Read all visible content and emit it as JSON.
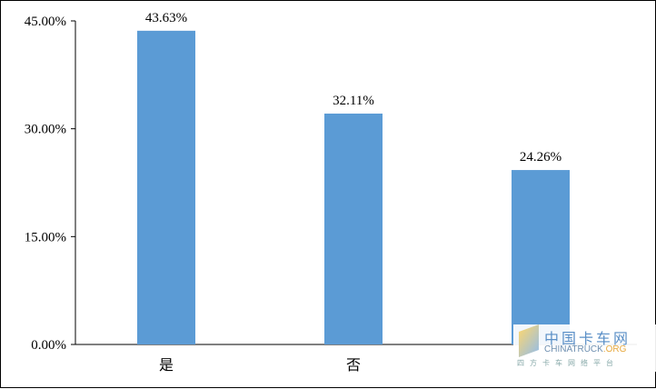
{
  "chart_data": {
    "type": "bar",
    "categories": [
      "是",
      "否",
      ""
    ],
    "values": [
      43.63,
      32.11,
      24.26
    ],
    "data_labels": [
      "43.63%",
      "32.11%",
      "24.26%"
    ],
    "ylim": [
      0,
      45
    ],
    "yticks": [
      0,
      15,
      30,
      45
    ],
    "ytick_labels": [
      "0.00%",
      "15.00%",
      "30.00%",
      "45.00%"
    ],
    "grid": false,
    "bar_color": "#5b9bd5",
    "title": "",
    "xlabel": "",
    "ylabel": ""
  },
  "watermark": {
    "cn": "中国卡车网",
    "en_a": "CHINATRUCK",
    "en_b": ".ORG",
    "sub": "四方卡车网络平台"
  }
}
